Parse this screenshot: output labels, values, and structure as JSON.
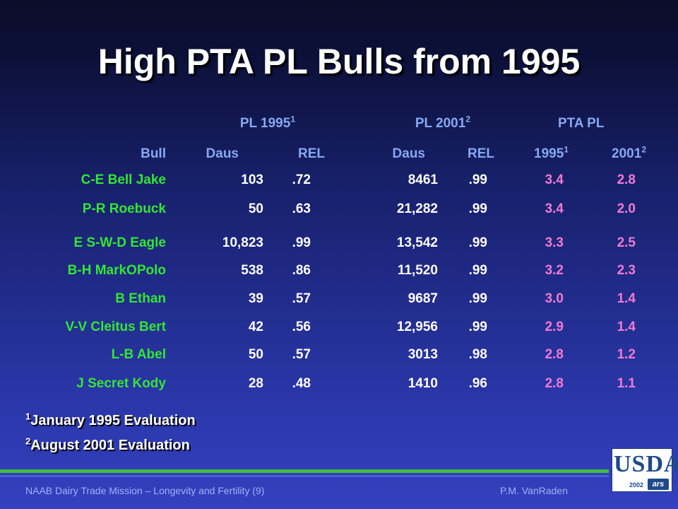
{
  "slide": {
    "title": "High PTA PL Bulls from 1995",
    "group_headers": [
      {
        "label": "PL 1995",
        "sup": "1"
      },
      {
        "label": "PL 2001",
        "sup": "2"
      },
      {
        "label": "PTA PL",
        "sup": ""
      }
    ],
    "col_headers": [
      {
        "label": "Bull",
        "sup": ""
      },
      {
        "label": "Daus",
        "sup": ""
      },
      {
        "label": "REL",
        "sup": ""
      },
      {
        "label": "Daus",
        "sup": ""
      },
      {
        "label": "REL",
        "sup": ""
      },
      {
        "label": "1995",
        "sup": "1"
      },
      {
        "label": "2001",
        "sup": "2"
      }
    ],
    "rows": [
      {
        "bull": "C-E Bell Jake",
        "daus95": "103",
        "rel95": ".72",
        "daus01": "8461",
        "rel01": ".99",
        "pta95": "3.4",
        "pta01": "2.8"
      },
      {
        "bull": "P-R Roebuck",
        "daus95": "50",
        "rel95": ".63",
        "daus01": "21,282",
        "rel01": ".99",
        "pta95": "3.4",
        "pta01": "2.0"
      },
      {
        "bull": "E S-W-D Eagle",
        "daus95": "10,823",
        "rel95": ".99",
        "daus01": "13,542",
        "rel01": ".99",
        "pta95": "3.3",
        "pta01": "2.5"
      },
      {
        "bull": "B-H MarkOPolo",
        "daus95": "538",
        "rel95": ".86",
        "daus01": "11,520",
        "rel01": ".99",
        "pta95": "3.2",
        "pta01": "2.3"
      },
      {
        "bull": "B Ethan",
        "daus95": "39",
        "rel95": ".57",
        "daus01": "9687",
        "rel01": ".99",
        "pta95": "3.0",
        "pta01": "1.4"
      },
      {
        "bull": "V-V Cleitus Bert",
        "daus95": "42",
        "rel95": ".56",
        "daus01": "12,956",
        "rel01": ".99",
        "pta95": "2.9",
        "pta01": "1.4"
      },
      {
        "bull": "L-B Abel",
        "daus95": "50",
        "rel95": ".57",
        "daus01": "3013",
        "rel01": ".98",
        "pta95": "2.8",
        "pta01": "1.2"
      },
      {
        "bull": "J Secret Kody",
        "daus95": "28",
        "rel95": ".48",
        "daus01": "1410",
        "rel01": ".96",
        "pta95": "2.8",
        "pta01": "1.1"
      }
    ],
    "footnotes": [
      {
        "sup": "1",
        "text": "January 1995 Evaluation"
      },
      {
        "sup": "2",
        "text": "August 2001 Evaluation"
      }
    ],
    "footer": {
      "left": "NAAB Dairy  Trade Mission – Longevity and Fertility (9)",
      "right": "P.M. VanRaden"
    },
    "logo": {
      "text": "USDA",
      "year": "2002",
      "badge": "ars"
    },
    "colors": {
      "title": "#ffffff",
      "header": "#87a8f0",
      "bull_name": "#33e633",
      "numbers": "#ffffff",
      "pta": "#f07ad2",
      "rule_green": "#3fbf3f"
    }
  }
}
